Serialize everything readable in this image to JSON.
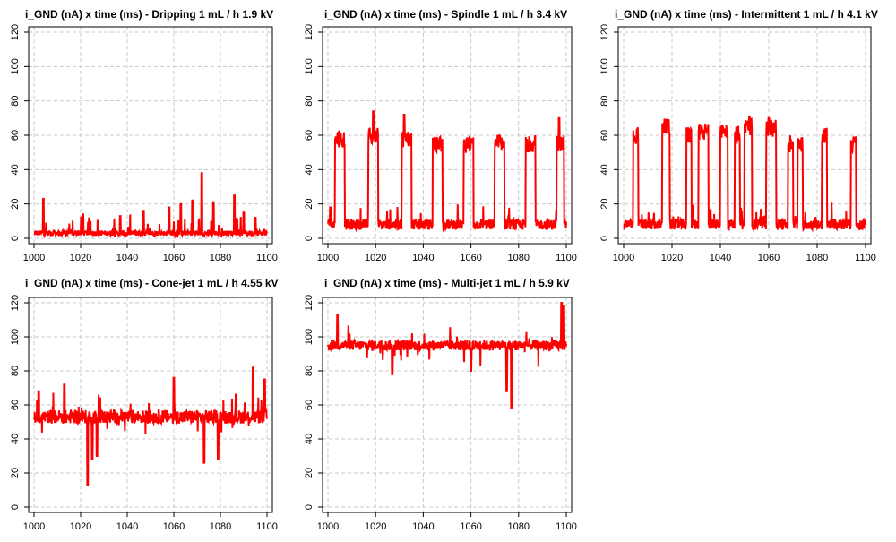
{
  "colors": {
    "series": "#ff0000",
    "grid": "#c8c8c8",
    "axis": "#000000"
  },
  "chart_data": [
    {
      "type": "line",
      "title": "i_GND (nA) x time (ms) -  Dripping 1 mL / h 1.9 kV",
      "xlim": [
        1000,
        1100
      ],
      "ylim": [
        0,
        120
      ],
      "xticks": [
        "1000",
        "1020",
        "1040",
        "1060",
        "1080",
        "1100"
      ],
      "yticks": [
        "0",
        "20",
        "40",
        "60",
        "80",
        "100",
        "120"
      ],
      "grid": true,
      "series": [
        {
          "mode": "dripping",
          "baseline": 3,
          "peaks": [
            [
              1004,
              23
            ],
            [
              1021,
              14
            ],
            [
              1037,
              13
            ],
            [
              1047,
              16
            ],
            [
              1058,
              18
            ],
            [
              1063,
              20
            ],
            [
              1068,
              22
            ],
            [
              1072,
              38
            ],
            [
              1077,
              21
            ],
            [
              1086,
              25
            ],
            [
              1090,
              15
            ],
            [
              1095,
              12
            ]
          ]
        }
      ]
    },
    {
      "type": "line",
      "title": "i_GND (nA) x time (ms) -  Spindle 1 mL / h 3.4 kV",
      "xlim": [
        1000,
        1100
      ],
      "ylim": [
        0,
        120
      ],
      "xticks": [
        "1000",
        "1020",
        "1040",
        "1060",
        "1080",
        "1100"
      ],
      "yticks": [
        "0",
        "20",
        "40",
        "60",
        "80",
        "100",
        "120"
      ],
      "grid": true,
      "series": [
        {
          "mode": "pulses",
          "baseline": 8,
          "pulses": [
            [
              1003,
              1007,
              58
            ],
            [
              1017,
              1021,
              60
            ],
            [
              1031,
              1035,
              58
            ],
            [
              1044,
              1048,
              55
            ],
            [
              1057,
              1061,
              54
            ],
            [
              1070,
              1074,
              56
            ],
            [
              1083,
              1087,
              55
            ],
            [
              1096,
              1099,
              55
            ]
          ],
          "spikes": [
            [
              1019,
              74
            ],
            [
              1032,
              72
            ],
            [
              1097,
              70
            ],
            [
              1001,
              18
            ]
          ]
        }
      ]
    },
    {
      "type": "line",
      "title": "i_GND (nA) x time (ms) -  Intermittent 1 mL / h 4.1 kV",
      "xlim": [
        1000,
        1100
      ],
      "ylim": [
        0,
        120
      ],
      "xticks": [
        "1000",
        "1020",
        "1040",
        "1060",
        "1080",
        "1100"
      ],
      "yticks": [
        "0",
        "20",
        "40",
        "60",
        "80",
        "100",
        "120"
      ],
      "grid": true,
      "series": [
        {
          "mode": "pulses",
          "baseline": 8,
          "pulses": [
            [
              1004,
              1006,
              60
            ],
            [
              1016,
              1019,
              65
            ],
            [
              1026,
              1028,
              60
            ],
            [
              1031,
              1035,
              62
            ],
            [
              1040,
              1043,
              62
            ],
            [
              1046,
              1048,
              60
            ],
            [
              1050,
              1053,
              65
            ],
            [
              1059,
              1063,
              64
            ],
            [
              1068,
              1070,
              55
            ],
            [
              1072,
              1074,
              55
            ],
            [
              1082,
              1084,
              60
            ],
            [
              1094,
              1096,
              55
            ]
          ],
          "spikes": [
            [
              1052,
              71
            ],
            [
              1060,
              70
            ],
            [
              1018,
              69
            ]
          ]
        }
      ]
    },
    {
      "type": "line",
      "title": "i_GND (nA) x time (ms) -  Cone-jet 1 mL / h 4.55 kV",
      "xlim": [
        1000,
        1100
      ],
      "ylim": [
        0,
        120
      ],
      "xticks": [
        "1000",
        "1020",
        "1040",
        "1060",
        "1080",
        "1100"
      ],
      "yticks": [
        "0",
        "20",
        "40",
        "60",
        "80",
        "100",
        "120"
      ],
      "grid": true,
      "series": [
        {
          "mode": "noise",
          "level": 53,
          "jitter": 4,
          "spikes": [
            [
              1023,
              13
            ],
            [
              1025,
              28
            ],
            [
              1027,
              30
            ],
            [
              1073,
              26
            ],
            [
              1079,
              28
            ],
            [
              1094,
              82
            ],
            [
              1099,
              75
            ],
            [
              1060,
              76
            ],
            [
              1002,
              68
            ],
            [
              1013,
              72
            ]
          ]
        }
      ]
    },
    {
      "type": "line",
      "title": "i_GND (nA) x time (ms) -  Multi-jet 1 mL / h 5.9 kV",
      "xlim": [
        1000,
        1100
      ],
      "ylim": [
        0,
        120
      ],
      "xticks": [
        "1000",
        "1020",
        "1040",
        "1060",
        "1080",
        "1100"
      ],
      "yticks": [
        "0",
        "20",
        "40",
        "60",
        "80",
        "100",
        "120"
      ],
      "grid": true,
      "series": [
        {
          "mode": "noise",
          "level": 95,
          "jitter": 3,
          "spikes": [
            [
              1077,
              58
            ],
            [
              1075,
              68
            ],
            [
              1098,
              120
            ],
            [
              1099,
              118
            ],
            [
              1004,
              113
            ],
            [
              1027,
              78
            ],
            [
              1060,
              80
            ]
          ]
        }
      ]
    }
  ]
}
